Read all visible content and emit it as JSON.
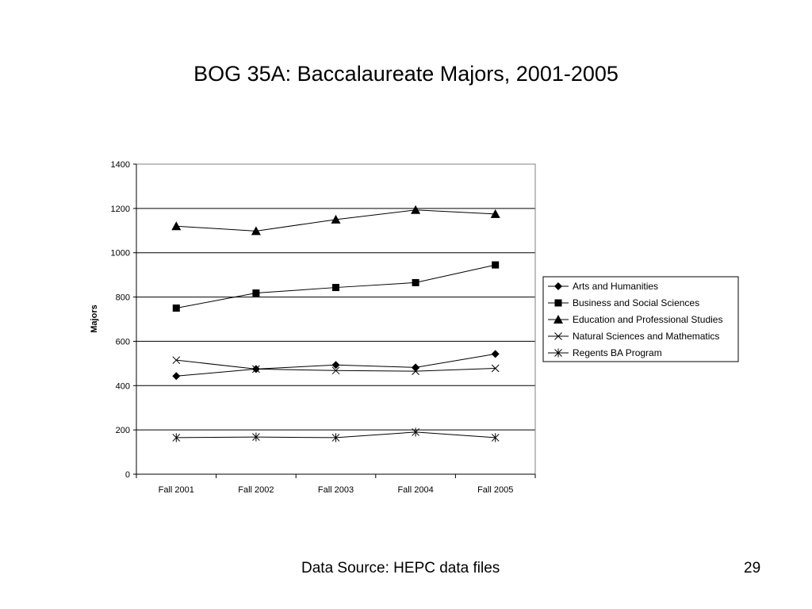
{
  "slide": {
    "title": "BOG 35A: Baccalaureate Majors, 2001-2005",
    "source": "Data Source: HEPC data files",
    "page_number": "29"
  },
  "chart_data": {
    "type": "line",
    "title": "",
    "xlabel": "",
    "ylabel": "Majors",
    "categories": [
      "Fall 2001",
      "Fall 2002",
      "Fall 2003",
      "Fall 2004",
      "Fall 2005"
    ],
    "ylim": [
      0,
      1400
    ],
    "yticks": [
      0,
      200,
      400,
      600,
      800,
      1000,
      1200,
      1400
    ],
    "grid": true,
    "legend_position": "right",
    "series": [
      {
        "name": "Arts and Humanities",
        "marker": "diamond",
        "values": [
          443,
          475,
          493,
          482,
          543
        ]
      },
      {
        "name": "Business and Social Sciences",
        "marker": "square",
        "values": [
          750,
          818,
          843,
          865,
          945
        ]
      },
      {
        "name": "Education and Professional Studies",
        "marker": "triangle",
        "values": [
          1120,
          1098,
          1150,
          1193,
          1175
        ]
      },
      {
        "name": "Natural Sciences and Mathematics",
        "marker": "x",
        "values": [
          515,
          475,
          468,
          465,
          478
        ]
      },
      {
        "name": "Regents BA Program",
        "marker": "asterisk",
        "values": [
          165,
          168,
          165,
          190,
          165
        ]
      }
    ]
  }
}
